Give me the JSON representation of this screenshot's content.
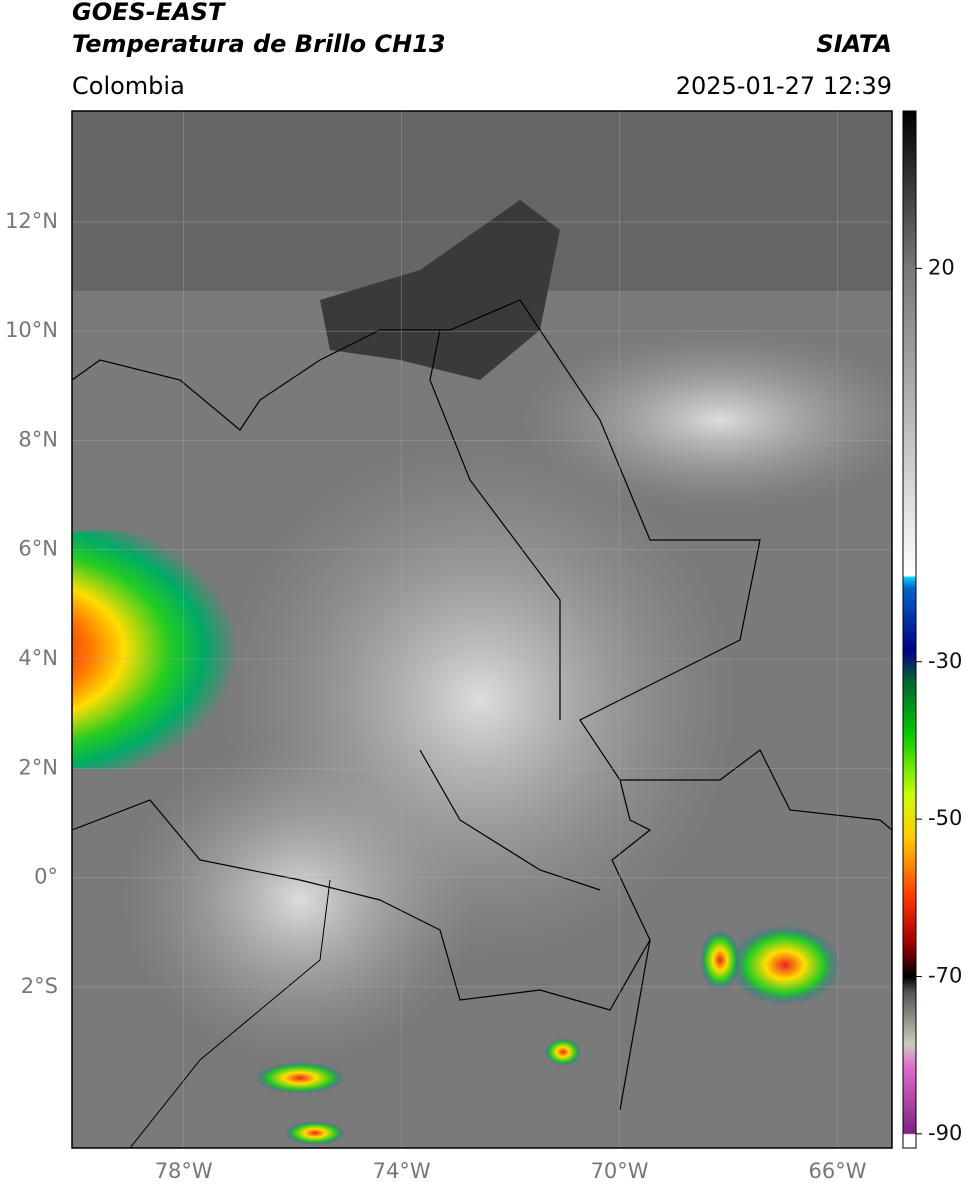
{
  "header": {
    "satellite": "GOES-EAST",
    "product": "Temperatura de Brillo CH13",
    "agency": "SIATA",
    "region": "Colombia",
    "datetime": "2025-01-27 12:39"
  },
  "map": {
    "xlim": [
      -80.05,
      -65
    ],
    "ylim": [
      -4.95,
      14.03
    ],
    "xticks": [
      {
        "value": -78,
        "label": "78°W"
      },
      {
        "value": -74,
        "label": "74°W"
      },
      {
        "value": -70,
        "label": "70°W"
      },
      {
        "value": -66,
        "label": "66°W"
      }
    ],
    "yticks": [
      {
        "value": 12,
        "label": "12°N"
      },
      {
        "value": 10,
        "label": "10°N"
      },
      {
        "value": 8,
        "label": "8°N"
      },
      {
        "value": 6,
        "label": "6°N"
      },
      {
        "value": 4,
        "label": "4°N"
      },
      {
        "value": 2,
        "label": "2°N"
      },
      {
        "value": 0,
        "label": "0°"
      },
      {
        "value": -2,
        "label": "2°S"
      }
    ],
    "grid": true
  },
  "colorbar": {
    "lim": [
      -91.8,
      40
    ],
    "ticks": [
      20,
      -30,
      -50,
      -70,
      -90
    ]
  }
}
